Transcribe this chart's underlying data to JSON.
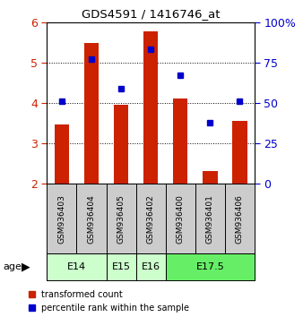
{
  "title": "GDS4591 / 1416746_at",
  "samples": [
    "GSM936403",
    "GSM936404",
    "GSM936405",
    "GSM936402",
    "GSM936400",
    "GSM936401",
    "GSM936406"
  ],
  "red_values": [
    3.47,
    5.49,
    3.96,
    5.78,
    4.11,
    2.31,
    3.55
  ],
  "blue_pct": [
    51,
    77,
    59,
    83,
    67,
    38,
    51
  ],
  "ylim_left": [
    2,
    6
  ],
  "ylim_right": [
    0,
    100
  ],
  "yticks_left": [
    2,
    3,
    4,
    5,
    6
  ],
  "yticks_right": [
    0,
    25,
    50,
    75,
    100
  ],
  "age_groups": [
    {
      "label": "E14",
      "start": 0,
      "end": 2,
      "color": "#ccffcc"
    },
    {
      "label": "E15",
      "start": 2,
      "end": 3,
      "color": "#ccffcc"
    },
    {
      "label": "E16",
      "start": 3,
      "end": 4,
      "color": "#ccffcc"
    },
    {
      "label": "E17.5",
      "start": 4,
      "end": 7,
      "color": "#66ee66"
    }
  ],
  "bar_color": "#cc2200",
  "dot_color": "#0000cc",
  "bar_width": 0.5,
  "legend_labels": [
    "transformed count",
    "percentile rank within the sample"
  ],
  "background_color": "#ffffff",
  "sample_box_color": "#cccccc"
}
